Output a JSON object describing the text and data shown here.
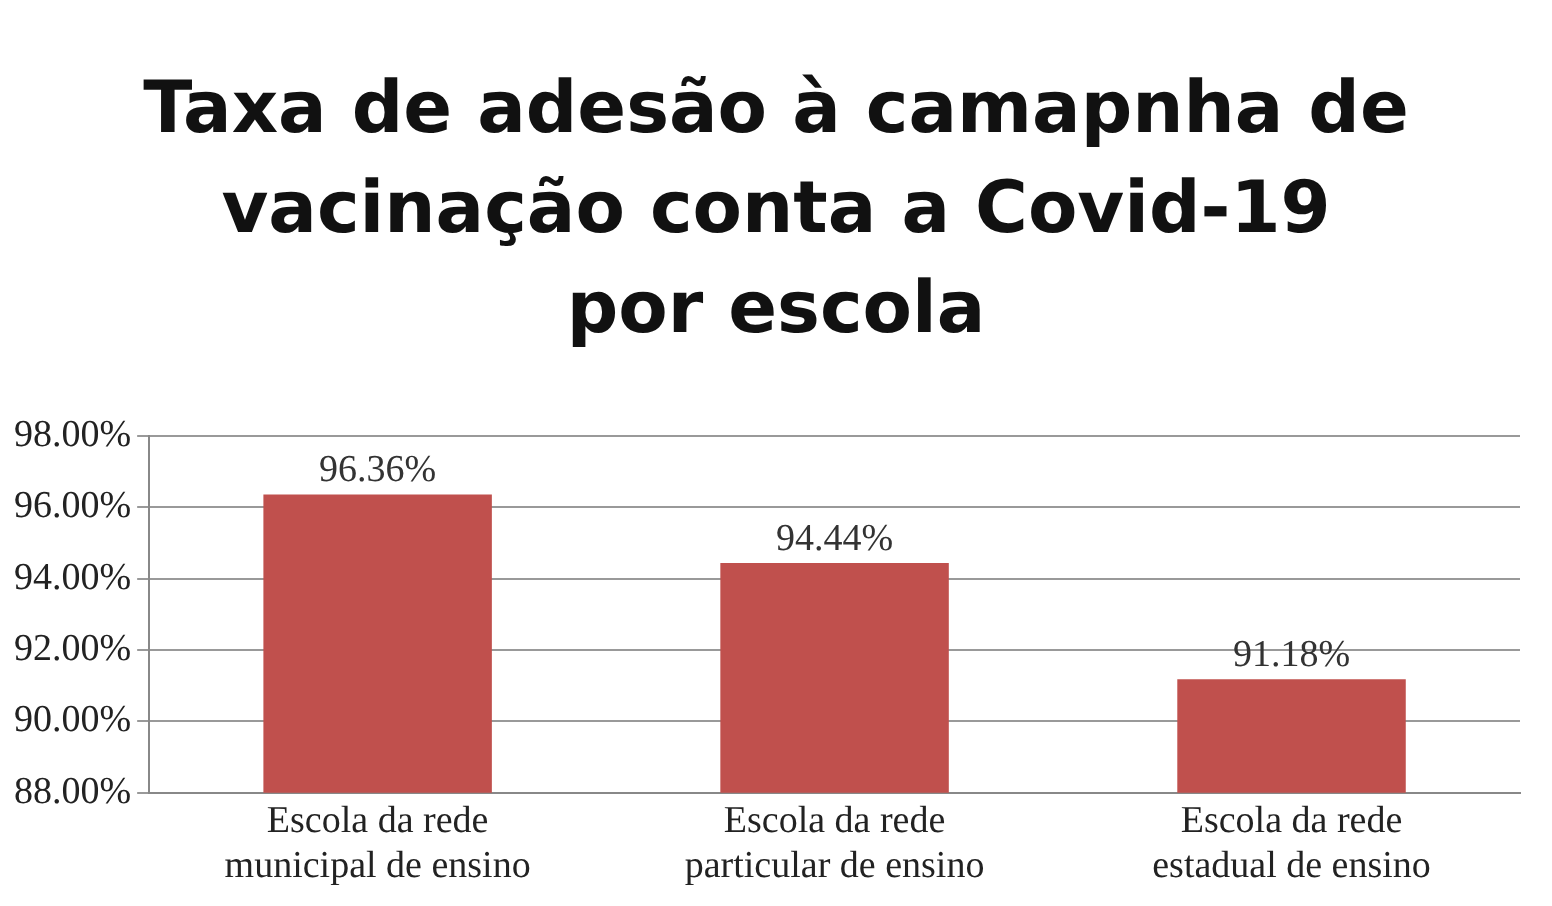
{
  "chart_data": {
    "type": "bar",
    "title": "Taxa de adesão à camapnha de\nvacinação conta a Covid-19\npor escola",
    "categories": [
      "Escola da rede municipal de ensino",
      "Escola da rede particular de ensino",
      "Escola da rede estadual de ensino"
    ],
    "values": [
      96.36,
      94.44,
      91.18
    ],
    "value_labels": [
      "96.36%",
      "94.44%",
      "91.18%"
    ],
    "color": "#c0504d",
    "ylim": [
      88,
      98
    ],
    "yticks": [
      {
        "value": 88,
        "label": "88.00%"
      },
      {
        "value": 90,
        "label": "90.00%"
      },
      {
        "value": 92,
        "label": "92.00%"
      },
      {
        "value": 94,
        "label": "94.00%"
      },
      {
        "value": 96,
        "label": "96.00%"
      },
      {
        "value": 98,
        "label": "98.00%"
      }
    ],
    "grid": "y",
    "legend": false
  }
}
